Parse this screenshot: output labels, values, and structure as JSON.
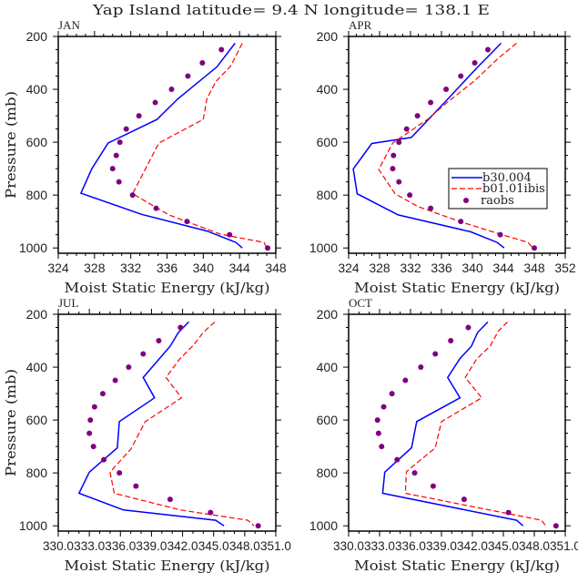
{
  "chart_data": {
    "type": "line",
    "title": "Yap Island  latitude= 9.4 N longitude= 138.1 E",
    "xlabel": "Moist Static Energy (kJ/kg)",
    "ylabel": "Pressure (mb)",
    "yticks": [
      200,
      400,
      600,
      800,
      1000
    ],
    "ylim": [
      200,
      1020
    ],
    "y_reversed": true,
    "grid": false,
    "legend": {
      "placement": "inside APR panel, lower-right",
      "entries": [
        {
          "name": "b30.004",
          "style": "solid line",
          "color": "#0000ff"
        },
        {
          "name": "b01.01ibis",
          "style": "dashed line",
          "color": "#ff0000"
        },
        {
          "name": "raobs",
          "style": "dots",
          "color": "#800080"
        }
      ]
    },
    "raobs_levels": [
      250,
      300,
      350,
      400,
      450,
      500,
      550,
      600,
      650,
      700,
      750,
      800,
      850,
      900,
      950,
      1000
    ],
    "panels": [
      {
        "label": "JAN",
        "xlim": [
          324,
          348
        ],
        "xticks": [
          324,
          328,
          332,
          336,
          340,
          344,
          348
        ],
        "xtick_labels": [
          "324",
          "328",
          "332",
          "336",
          "340",
          "344",
          "348"
        ],
        "b30_004": {
          "p": [
            226,
            315,
            436,
            514,
            603,
            701,
            793,
            873,
            936,
            979,
            1000
          ],
          "x": [
            343.5,
            341.5,
            337.2,
            334.9,
            329.5,
            327.7,
            326.5,
            333.2,
            340.4,
            343.6,
            344.3
          ]
        },
        "b01_01ibis": {
          "p": [
            226,
            313,
            370,
            436,
            514,
            603,
            795,
            875,
            948,
            979,
            1000
          ],
          "x": [
            344.3,
            343.0,
            341.4,
            340.4,
            340.0,
            335.1,
            332.2,
            336.2,
            341.9,
            346.7,
            347.0
          ]
        },
        "raobs": [
          342.0,
          339.9,
          338.3,
          336.5,
          334.7,
          332.9,
          331.5,
          330.8,
          330.4,
          330.0,
          330.7,
          332.2,
          334.8,
          338.2,
          342.9,
          347.1
        ]
      },
      {
        "label": "APR",
        "xlim": [
          324,
          352
        ],
        "xticks": [
          324,
          328,
          332,
          336,
          340,
          344,
          348,
          352
        ],
        "xtick_labels": [
          "324",
          "328",
          "332",
          "336",
          "340",
          "344",
          "348",
          "352"
        ],
        "b30_004": {
          "p": [
            226,
            321,
            453,
            582,
            605,
            701,
            795,
            875,
            939,
            979,
            1000
          ],
          "x": [
            343.7,
            340.5,
            336.3,
            332.1,
            327.0,
            324.6,
            325.1,
            330.4,
            339.8,
            343.2,
            344.1
          ]
        },
        "b01_01ibis": {
          "p": [
            226,
            281,
            367,
            453,
            514,
            603,
            703,
            795,
            844,
            902,
            948,
            979,
            1000
          ],
          "x": [
            345.7,
            343.4,
            340.3,
            336.6,
            334.2,
            329.7,
            327.9,
            330.0,
            333.0,
            338.6,
            343.6,
            347.2,
            347.8
          ]
        },
        "raobs": [
          342.0,
          340.3,
          338.5,
          336.6,
          334.6,
          332.9,
          331.5,
          330.5,
          329.8,
          329.7,
          330.5,
          331.9,
          334.6,
          338.5,
          343.6,
          348.0
        ]
      },
      {
        "label": "JUL",
        "xlim": [
          330,
          351
        ],
        "xticks": [
          330,
          333,
          336,
          339,
          342,
          345,
          348,
          351
        ],
        "xtick_labels": [
          "330.0",
          "333.0",
          "336.0",
          "339.0",
          "342.0",
          "345.0",
          "348.0",
          "351.0"
        ],
        "b30_004": {
          "p": [
            229,
            269,
            321,
            439,
            516,
            606,
            705,
            797,
            877,
            940,
            979,
            1000
          ],
          "x": [
            342.6,
            341.6,
            340.8,
            338.2,
            339.3,
            335.9,
            335.7,
            333.0,
            332.0,
            336.3,
            345.2,
            346.0
          ]
        },
        "b01_01ibis": {
          "p": [
            229,
            269,
            319,
            370,
            439,
            516,
            606,
            710,
            797,
            877,
            940,
            979,
            1000
          ],
          "x": [
            345.1,
            344.0,
            343.0,
            341.7,
            340.4,
            341.9,
            338.4,
            337.0,
            335.0,
            335.4,
            341.8,
            348.3,
            348.9
          ]
        },
        "raobs": [
          341.8,
          339.7,
          338.2,
          336.8,
          335.5,
          334.3,
          333.5,
          333.1,
          333.0,
          333.4,
          334.4,
          335.9,
          337.5,
          340.8,
          344.7,
          349.3
        ]
      },
      {
        "label": "OCT",
        "xlim": [
          330,
          351
        ],
        "xticks": [
          330,
          333,
          336,
          339,
          342,
          345,
          348,
          351
        ],
        "xtick_labels": [
          "330.0",
          "333.0",
          "336.0",
          "339.0",
          "342.0",
          "345.0",
          "348.0",
          "351.0"
        ],
        "b30_004": {
          "p": [
            229,
            269,
            321,
            367,
            439,
            516,
            606,
            705,
            797,
            877,
            979,
            1000
          ],
          "x": [
            343.5,
            342.5,
            341.9,
            340.8,
            339.6,
            340.8,
            336.6,
            336.1,
            333.5,
            333.3,
            346.3,
            346.9
          ]
        },
        "b01_01ibis": {
          "p": [
            229,
            264,
            319,
            370,
            439,
            516,
            606,
            705,
            795,
            877,
            979,
            1000
          ],
          "x": [
            345.4,
            344.5,
            343.75,
            342.4,
            341.3,
            342.9,
            339.0,
            338.4,
            335.6,
            335.5,
            348.7,
            349.1
          ]
        },
        "raobs": [
          341.6,
          339.9,
          338.4,
          337.0,
          335.5,
          334.2,
          333.4,
          332.8,
          332.9,
          333.2,
          334.7,
          336.4,
          338.2,
          341.2,
          345.5,
          350.1
        ]
      }
    ]
  }
}
